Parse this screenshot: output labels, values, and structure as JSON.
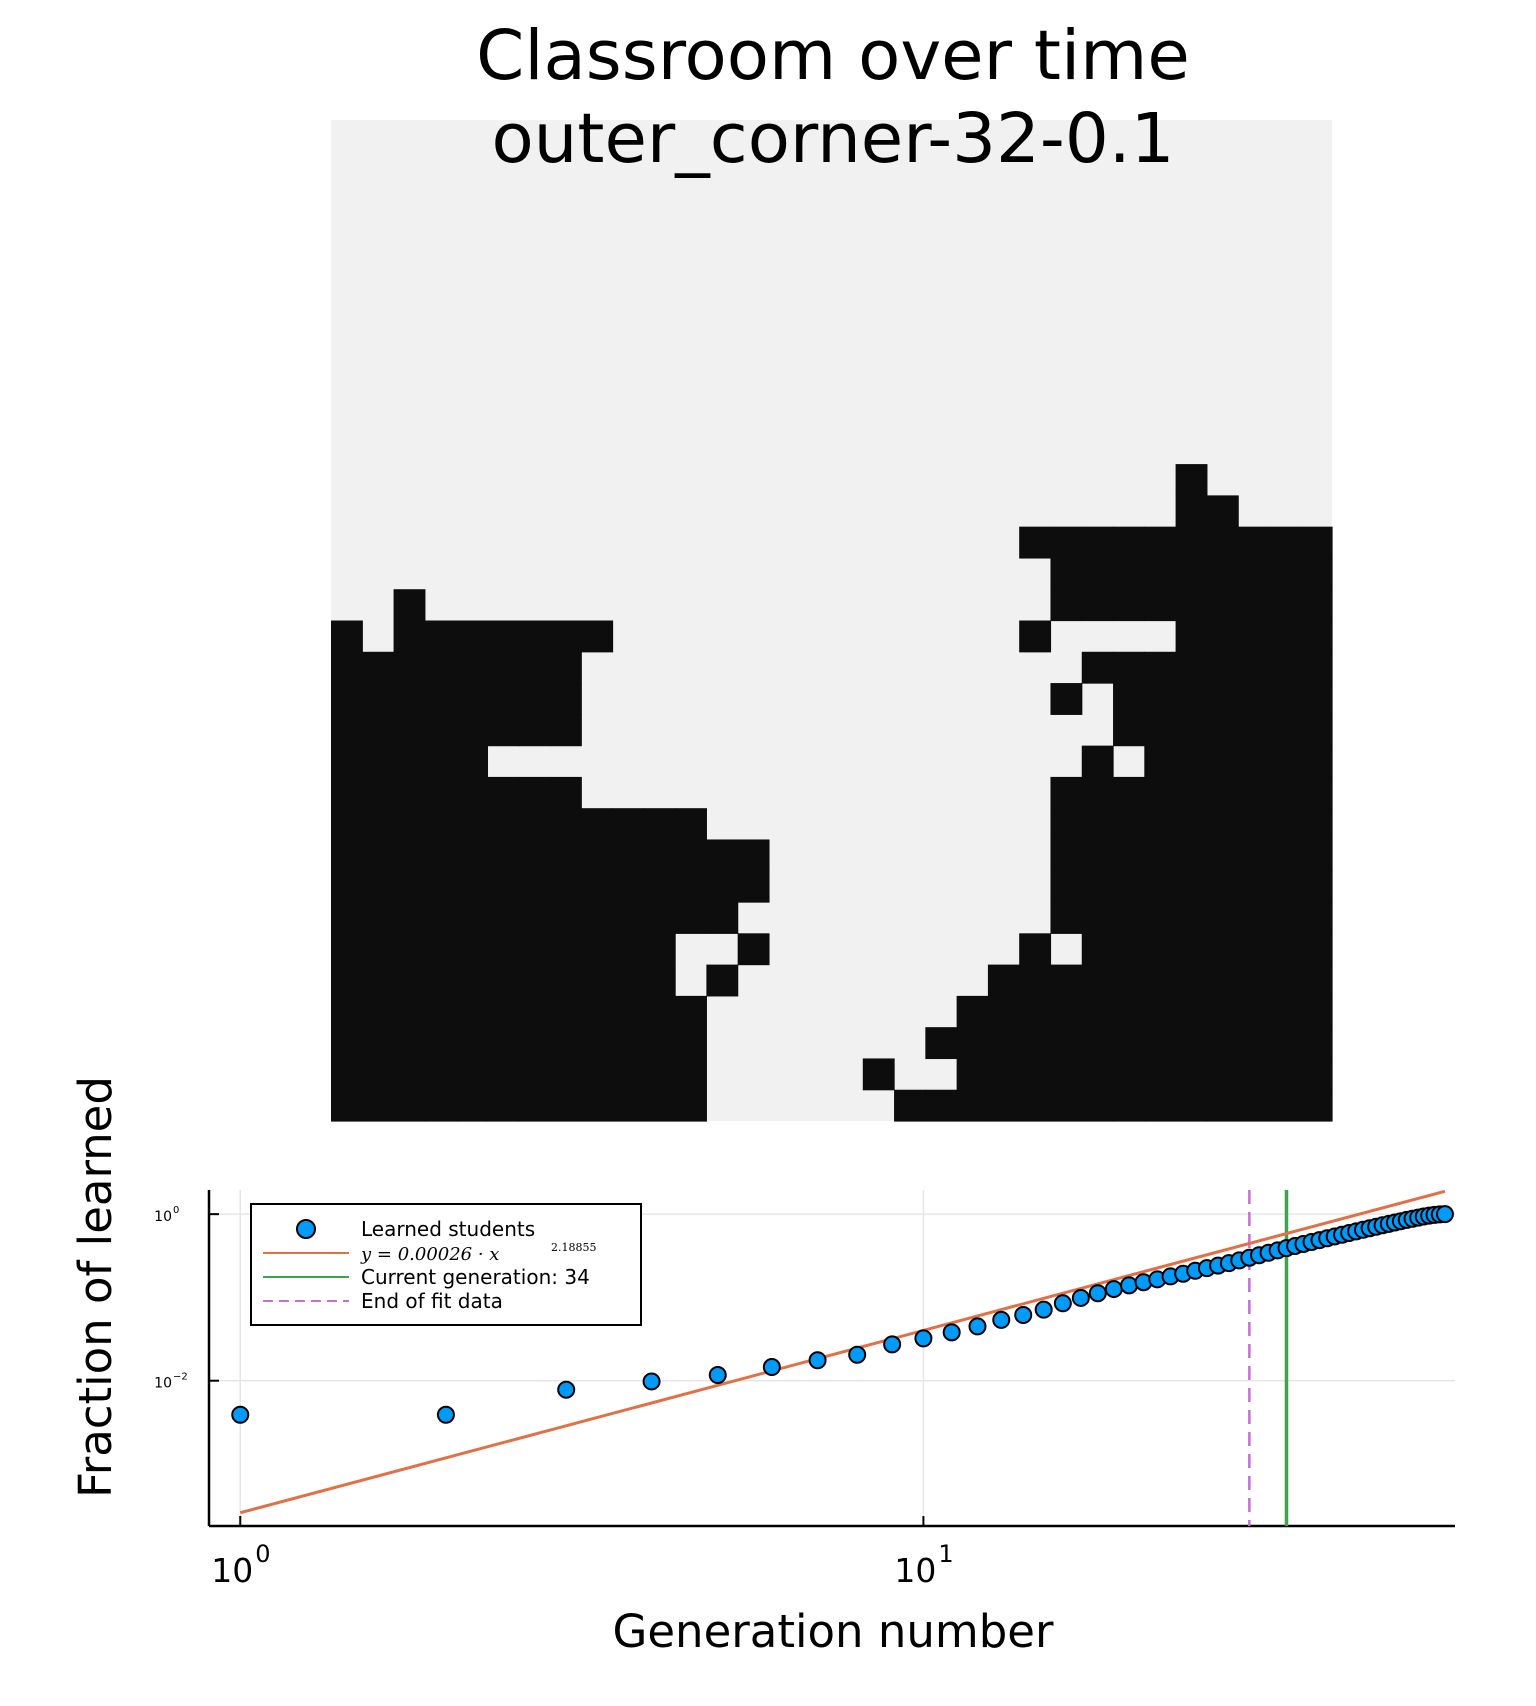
{
  "figure": {
    "title_line1": "Classroom over time",
    "title_line2": "outer_corner-32-0.1"
  },
  "heatmap": {
    "colors": {
      "on": "#0d0d0d",
      "off": "#f1f1f1"
    },
    "grid": [
      "11111111111100000011111111111111",
      "11111111111100000100111111111111",
      "11111111111100000001111111111111",
      "11111111111100000000111111111111",
      "11111111111010000000011111111111",
      "11111111111001000000001011111111",
      "11111111111110000000000111111111",
      "11111111111111000000000111111111",
      "11111111111111000000000111111111",
      "11111111111100000000000111111111",
      "11111111000000000000000111111111",
      "11111000000000000000000010111111",
      "11111111000000000000000001111111",
      "11111111000000000000000101111111",
      "11111111000000000000000011111111",
      "10111111100000000000001000011111",
      "00100000000000000000000111111111",
      "00000000000000000000000111111111",
      "00000000000000000000001111111111",
      "00000000000000000000000000011000",
      "00000000000000000000000000010000",
      "00000000000000000000000000000000",
      "00000000000000000000000000000000",
      "00000000000000000000000000000000",
      "00000000000000000000000000000000",
      "00000000000000000000000000000000",
      "00000000000000000000000000000000",
      "00000000000000000000000000000000",
      "00000000000000000000000000000000",
      "00000000000000000000000000000000",
      "00000000000000000000000000000000",
      "00000000000000000000000000000000"
    ]
  },
  "chart_data": {
    "type": "scatter",
    "xlabel": "Generation number",
    "ylabel": "Fraction of learned",
    "xscale": "log10",
    "yscale": "log10",
    "xlim": [
      0.9,
      60
    ],
    "ylim": [
      0.00018,
      1.95
    ],
    "xticks": [
      1,
      10
    ],
    "xtick_labels": [
      {
        "base": "10",
        "exp": "0"
      },
      {
        "base": "10",
        "exp": "1"
      }
    ],
    "yticks": [
      0.01,
      1
    ],
    "ytick_labels": [
      {
        "base": "10",
        "exp": "−2"
      },
      {
        "base": "10",
        "exp": "0"
      }
    ],
    "grid": true,
    "legend_position": "top-left",
    "legend": [
      {
        "label": "Learned students"
      },
      {
        "label_plain": "y = 0.00026 · x",
        "label_exp": "2.18855"
      },
      {
        "label": "Current generation: 34"
      },
      {
        "label": "End of fit data"
      }
    ],
    "colors": {
      "scatter": "#009af9",
      "fit": "#e26f46",
      "current": "#3da44d",
      "end_fit": "#c271d2",
      "grid": "#e6e6e6"
    },
    "series": [
      {
        "name": "Learned students",
        "type": "scatter",
        "x": [
          1,
          2,
          3,
          4,
          5,
          6,
          7,
          8,
          9,
          10,
          11,
          12,
          13,
          14,
          15,
          16,
          17,
          18,
          19,
          20,
          21,
          22,
          23,
          24,
          25,
          26,
          27,
          28,
          29,
          30,
          31,
          32,
          33,
          34,
          35,
          36,
          37,
          38,
          39,
          40,
          41,
          42,
          43,
          44,
          45,
          46,
          47,
          48,
          49,
          50,
          51,
          52,
          53,
          54,
          55,
          56,
          57,
          58
        ],
        "y": [
          0.0039,
          0.0039,
          0.0078,
          0.0098,
          0.0117,
          0.0146,
          0.0176,
          0.0205,
          0.0273,
          0.0322,
          0.0381,
          0.0449,
          0.0537,
          0.0615,
          0.0713,
          0.085,
          0.0986,
          0.1123,
          0.126,
          0.1396,
          0.1523,
          0.165,
          0.1787,
          0.1924,
          0.209,
          0.2246,
          0.2412,
          0.2578,
          0.2783,
          0.2998,
          0.3213,
          0.3438,
          0.3672,
          0.3906,
          0.415,
          0.4385,
          0.4629,
          0.4883,
          0.5137,
          0.54,
          0.5664,
          0.5938,
          0.6211,
          0.6494,
          0.6777,
          0.7061,
          0.7354,
          0.7646,
          0.7939,
          0.8232,
          0.8525,
          0.8809,
          0.9092,
          0.9365,
          0.9609,
          0.9805,
          0.9941,
          1.0
        ]
      },
      {
        "name": "fit",
        "type": "line",
        "coefficient": 0.00026,
        "exponent": 2.18855,
        "x_range": [
          1,
          58
        ]
      },
      {
        "name": "Current generation: 34",
        "type": "vline",
        "x": 34
      },
      {
        "name": "End of fit data",
        "type": "vline",
        "x": 30,
        "style": "dashed"
      }
    ]
  }
}
